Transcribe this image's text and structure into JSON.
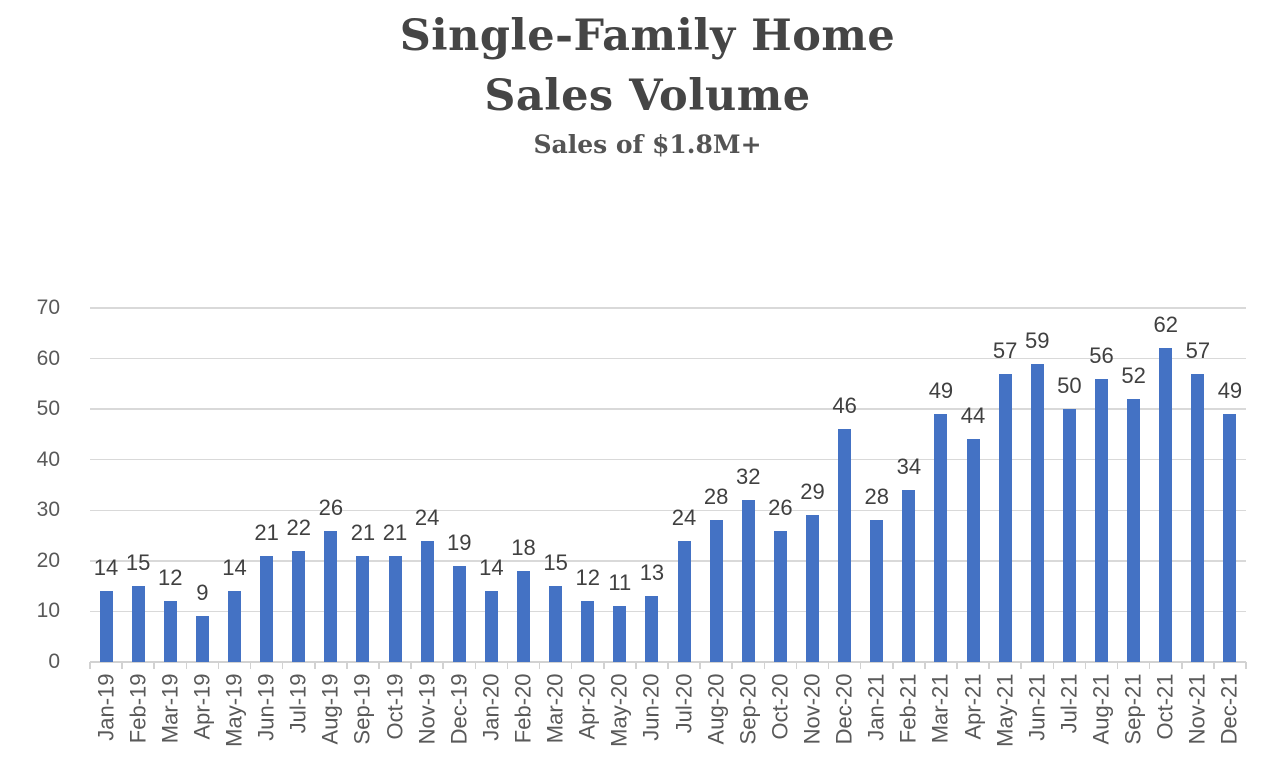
{
  "chart_data": {
    "type": "bar",
    "title_line1": "Single-Family Home",
    "title_line2": "Sales Volume",
    "subtitle": "Sales of $1.8M+",
    "categories": [
      "Jan-19",
      "Feb-19",
      "Mar-19",
      "Apr-19",
      "May-19",
      "Jun-19",
      "Jul-19",
      "Aug-19",
      "Sep-19",
      "Oct-19",
      "Nov-19",
      "Dec-19",
      "Jan-20",
      "Feb-20",
      "Mar-20",
      "Apr-20",
      "May-20",
      "Jun-20",
      "Jul-20",
      "Aug-20",
      "Sep-20",
      "Oct-20",
      "Nov-20",
      "Dec-20",
      "Jan-21",
      "Feb-21",
      "Mar-21",
      "Apr-21",
      "May-21",
      "Jun-21",
      "Jul-21",
      "Aug-21",
      "Sep-21",
      "Oct-21",
      "Nov-21",
      "Dec-21"
    ],
    "values": [
      14,
      15,
      12,
      9,
      14,
      21,
      22,
      26,
      21,
      21,
      24,
      19,
      14,
      18,
      15,
      12,
      11,
      13,
      24,
      28,
      32,
      26,
      29,
      46,
      28,
      34,
      49,
      44,
      57,
      59,
      50,
      56,
      52,
      62,
      57,
      49
    ],
    "data_labels_shown": true,
    "xlabel": "",
    "ylabel": "",
    "ylim": [
      0,
      70
    ],
    "ytick_labels": [
      "0",
      "10",
      "20",
      "30",
      "40",
      "50",
      "60",
      "70"
    ],
    "ytick_values": [
      0,
      10,
      20,
      30,
      40,
      50,
      60,
      70
    ],
    "grid": "horizontal",
    "legend_position": "none",
    "bar_color": "#4472C4",
    "gridline_color": "#D9D9D9",
    "axis_label_color": "#595959",
    "data_label_color": "#404040",
    "title_color": "#454545"
  }
}
